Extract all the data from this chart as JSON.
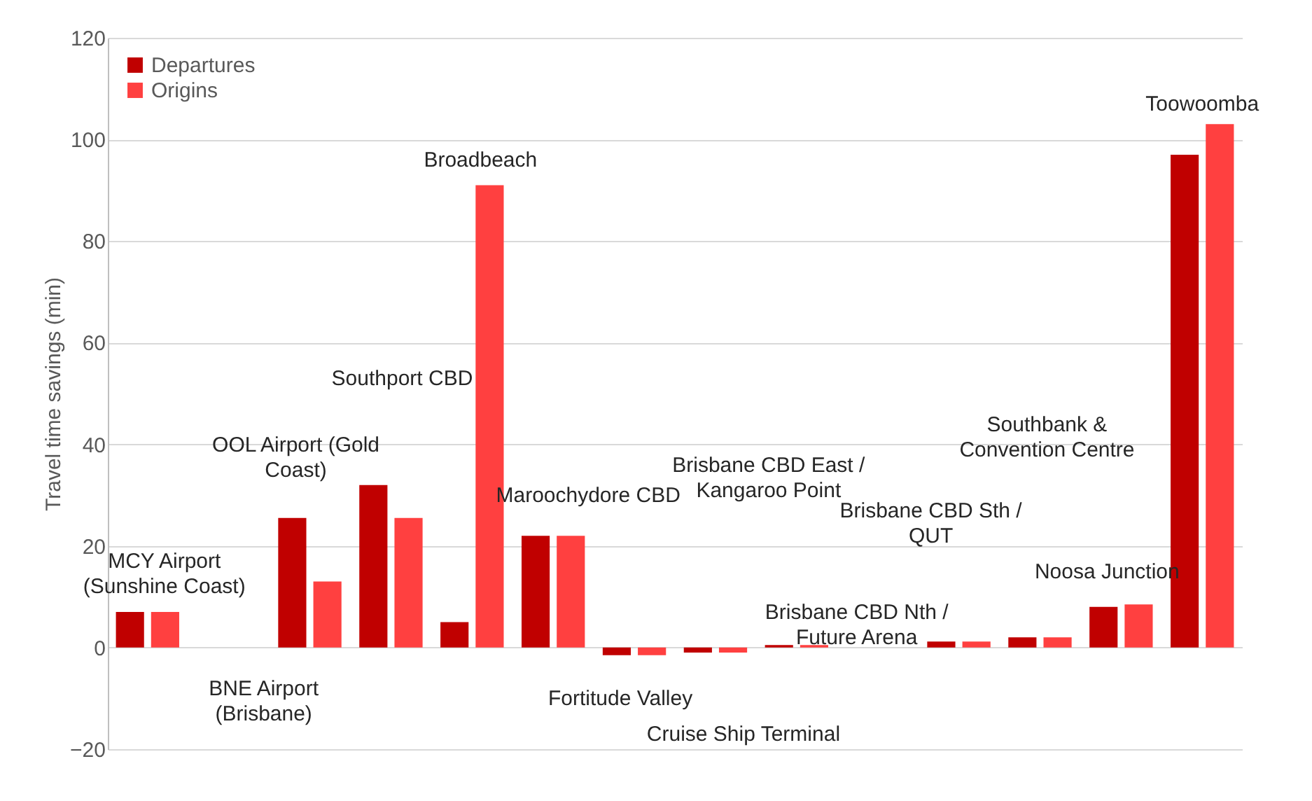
{
  "chart_data": {
    "type": "bar",
    "ylabel": "Travel time savings (min)",
    "categories": [
      "MCY Airport (Sunshine Coast)",
      "BNE Airport (Brisbane)",
      "OOL Airport (Gold Coast)",
      "Southport CBD",
      "Broadbeach",
      "Maroochydore CBD",
      "Fortitude Valley",
      "Cruise Ship Terminal",
      "Brisbane CBD East / Kangaroo Point",
      "Brisbane CBD Nth / Future Arena",
      "Brisbane CBD Sth / QUT",
      "Southbank & Convention Centre",
      "Noosa Junction",
      "Toowoomba"
    ],
    "series": [
      {
        "name": "Departures",
        "color": "#c00000",
        "values": [
          7,
          0,
          25.5,
          32,
          5,
          22,
          -1.5,
          -1,
          0.5,
          0,
          1.2,
          2,
          8,
          97
        ]
      },
      {
        "name": "Origins",
        "color": "#ff4040",
        "values": [
          7,
          0,
          13,
          25.5,
          91,
          22,
          -1.5,
          -1,
          0.5,
          0,
          1.2,
          2,
          8.5,
          103
        ]
      }
    ],
    "ylim": [
      -20,
      120
    ],
    "yticks": [
      -20,
      0,
      20,
      40,
      60,
      80,
      100,
      120
    ],
    "grid": "y",
    "legend": "top left",
    "tick_labels": "y"
  }
}
